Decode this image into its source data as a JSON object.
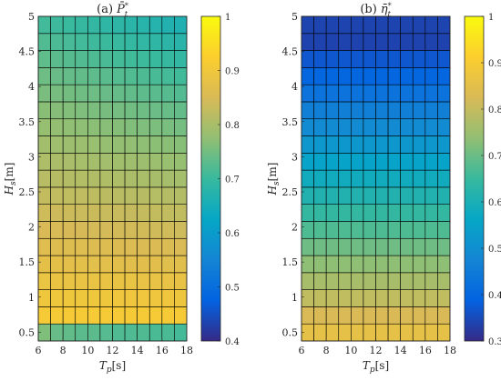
{
  "chart_data": [
    {
      "type": "heatmap",
      "panel": "(a)",
      "title": "P̄",
      "title_sup": "*",
      "title_sub": "t",
      "xlabel": "T",
      "xlabel_sub": "p",
      "xlabel_unit": "[s]",
      "ylabel": "H",
      "ylabel_sub": "s",
      "ylabel_unit": "[m]",
      "xlim": [
        6,
        18
      ],
      "ylim": [
        0.375,
        5.0
      ],
      "x_tick_labels": [
        "6",
        "8",
        "10",
        "12",
        "14",
        "16",
        "18"
      ],
      "y_tick_labels": [
        "0.5",
        "1",
        "1.5",
        "2",
        "2.5",
        "3",
        "3.5",
        "4",
        "4.5",
        "5"
      ],
      "grid_columns": 12,
      "grid_rows": 19,
      "colormap": "parula",
      "color_limits": [
        0.4,
        1.0
      ],
      "colorbar_ticks": [
        "0.4",
        "0.5",
        "0.6",
        "0.7",
        "0.8",
        "0.9",
        "1"
      ],
      "value_model": "value = 0.945 + 0.01*(Tp-6)/12 - Hs/5*(0.24 + 0.06*(Tp-6)/12) at row-center Hs, except bottom row",
      "bottom_row_values": [
        0.76,
        0.74,
        0.735,
        0.73,
        0.73,
        0.725,
        0.72,
        0.72,
        0.72,
        0.715,
        0.715,
        0.71
      ]
    },
    {
      "type": "heatmap",
      "panel": "(b)",
      "title": "η̄",
      "title_sup": "*",
      "title_sub": "t",
      "xlabel": "T",
      "xlabel_sub": "p",
      "xlabel_unit": "[s]",
      "ylabel": "H",
      "ylabel_sub": "s",
      "ylabel_unit": "[m]",
      "xlim": [
        6,
        18
      ],
      "ylim": [
        0.375,
        5.0
      ],
      "x_tick_labels": [
        "6",
        "8",
        "10",
        "12",
        "14",
        "16",
        "18"
      ],
      "y_tick_labels": [
        "0.5",
        "1",
        "1.5",
        "2",
        "2.5",
        "3",
        "3.5",
        "4",
        "4.5",
        "5"
      ],
      "grid_columns": 12,
      "grid_rows": 19,
      "colormap": "parula",
      "color_limits": [
        0.3,
        1.0
      ],
      "colorbar_ticks": [
        "0.3",
        "0.4",
        "0.5",
        "0.6",
        "0.7",
        "0.8",
        "0.9",
        "1"
      ],
      "value_model": "value = 0.855 - 0.125*(Hs-0.5) at row-center Hs, except top row",
      "top_row_value": 0.34
    }
  ],
  "colors": {
    "text": "#262626",
    "cell_edge": "#000000",
    "parula_stops": [
      "#352A87",
      "#0363E1",
      "#1485D4",
      "#06A7C6",
      "#38B99E",
      "#92BF73",
      "#D9BA56",
      "#FCCE2E",
      "#F9FB0E"
    ]
  }
}
